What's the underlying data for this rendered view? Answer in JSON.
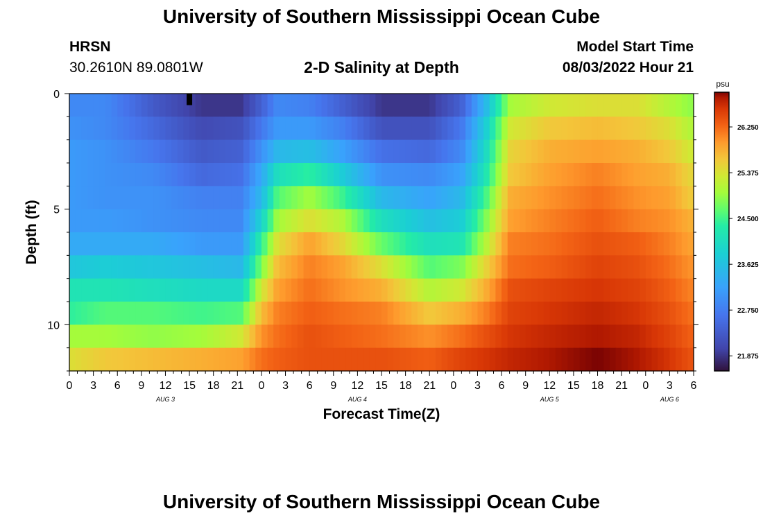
{
  "header": {
    "title": "University of Southern Mississippi Ocean Cube",
    "station": "HRSN",
    "coords": "30.2610N  89.0801W",
    "subtitle": "2-D Salinity at Depth",
    "start_label": "Model Start Time",
    "start_value": "08/03/2022 Hour 21"
  },
  "footer": {
    "title": "University of Southern Mississippi Ocean Cube"
  },
  "chart_data": {
    "type": "heatmap",
    "title": "2-D Salinity at Depth",
    "xlabel": "Forecast Time(Z)",
    "ylabel": "Depth (ft)",
    "x_range_hours": [
      0,
      78
    ],
    "x_ticks": [
      {
        "h": 0,
        "label": "0"
      },
      {
        "h": 3,
        "label": "3"
      },
      {
        "h": 6,
        "label": "6"
      },
      {
        "h": 9,
        "label": "9"
      },
      {
        "h": 12,
        "label": "12"
      },
      {
        "h": 15,
        "label": "15"
      },
      {
        "h": 18,
        "label": "18"
      },
      {
        "h": 21,
        "label": "21"
      },
      {
        "h": 24,
        "label": "0"
      },
      {
        "h": 27,
        "label": "3"
      },
      {
        "h": 30,
        "label": "6"
      },
      {
        "h": 33,
        "label": "9"
      },
      {
        "h": 36,
        "label": "12"
      },
      {
        "h": 39,
        "label": "15"
      },
      {
        "h": 42,
        "label": "18"
      },
      {
        "h": 45,
        "label": "21"
      },
      {
        "h": 48,
        "label": "0"
      },
      {
        "h": 51,
        "label": "3"
      },
      {
        "h": 54,
        "label": "6"
      },
      {
        "h": 57,
        "label": "9"
      },
      {
        "h": 60,
        "label": "12"
      },
      {
        "h": 63,
        "label": "15"
      },
      {
        "h": 66,
        "label": "18"
      },
      {
        "h": 69,
        "label": "21"
      },
      {
        "h": 72,
        "label": "0"
      },
      {
        "h": 75,
        "label": "3"
      },
      {
        "h": 78,
        "label": "6"
      }
    ],
    "date_labels": [
      {
        "h": 12,
        "label": "AUG 3"
      },
      {
        "h": 36,
        "label": "AUG 4"
      },
      {
        "h": 60,
        "label": "AUG 5"
      },
      {
        "h": 75,
        "label": "AUG 6"
      }
    ],
    "y_range_ft": [
      0,
      12
    ],
    "y_ticks": [
      {
        "v": 0,
        "label": "0"
      },
      {
        "v": 5,
        "label": "5"
      },
      {
        "v": 10,
        "label": "10"
      }
    ],
    "depth_levels_ft": [
      0.5,
      1.5,
      2.5,
      3.5,
      4.5,
      5.5,
      6.5,
      7.5,
      8.5,
      9.5,
      10.5,
      11.5
    ],
    "colorbar": {
      "unit": "psu",
      "range": [
        21.6,
        26.9
      ],
      "ticks": [
        "21.875",
        "22.750",
        "23.625",
        "24.500",
        "25.375",
        "26.250"
      ]
    },
    "salinity_keyframes": [
      {
        "h": 0,
        "values": [
          22.9,
          23.0,
          23.1,
          23.1,
          23.1,
          23.1,
          23.3,
          23.7,
          24.2,
          24.4,
          25.0,
          25.4
        ]
      },
      {
        "h": 4.5,
        "values": [
          22.9,
          22.9,
          23.0,
          23.0,
          23.0,
          23.1,
          23.3,
          23.8,
          24.2,
          24.6,
          25.0,
          25.6
        ]
      },
      {
        "h": 10.5,
        "values": [
          22.3,
          22.5,
          22.7,
          22.9,
          23.0,
          23.0,
          23.3,
          23.7,
          24.1,
          24.6,
          24.9,
          25.7
        ]
      },
      {
        "h": 16.5,
        "values": [
          21.9,
          22.1,
          22.3,
          22.5,
          22.8,
          22.9,
          23.1,
          23.6,
          24.0,
          24.5,
          25.0,
          25.8
        ]
      },
      {
        "h": 21.5,
        "values": [
          21.9,
          22.2,
          22.4,
          22.6,
          22.8,
          22.9,
          23.1,
          23.5,
          24.0,
          24.6,
          25.3,
          25.9
        ]
      },
      {
        "h": 24,
        "values": [
          22.4,
          22.7,
          23.0,
          23.3,
          23.5,
          23.9,
          24.4,
          24.8,
          25.3,
          25.7,
          26.0,
          26.2
        ]
      },
      {
        "h": 26,
        "values": [
          22.9,
          23.1,
          23.5,
          24.1,
          24.6,
          25.0,
          25.4,
          25.7,
          25.9,
          26.1,
          26.2,
          26.3
        ]
      },
      {
        "h": 30,
        "values": [
          22.8,
          23.1,
          23.6,
          24.4,
          25.0,
          25.4,
          25.9,
          26.1,
          26.2,
          26.3,
          26.4,
          26.4
        ]
      },
      {
        "h": 34,
        "values": [
          22.4,
          22.8,
          23.2,
          23.8,
          24.5,
          25.1,
          25.5,
          25.9,
          26.0,
          26.2,
          26.3,
          26.4
        ]
      },
      {
        "h": 39,
        "values": [
          21.9,
          22.2,
          22.6,
          23.0,
          23.5,
          24.1,
          24.7,
          25.4,
          25.8,
          26.1,
          26.2,
          26.4
        ]
      },
      {
        "h": 45,
        "values": [
          21.9,
          22.2,
          22.5,
          22.9,
          23.2,
          23.6,
          24.1,
          24.6,
          25.1,
          25.6,
          26.0,
          26.3
        ]
      },
      {
        "h": 49,
        "values": [
          22.4,
          22.7,
          22.9,
          23.2,
          23.5,
          23.8,
          24.2,
          24.8,
          25.3,
          25.8,
          26.2,
          26.5
        ]
      },
      {
        "h": 52,
        "values": [
          23.5,
          23.8,
          24.0,
          24.2,
          24.5,
          24.8,
          25.1,
          25.5,
          25.8,
          26.1,
          26.4,
          26.6
        ]
      },
      {
        "h": 55,
        "values": [
          25.0,
          25.3,
          25.5,
          25.6,
          25.8,
          25.9,
          26.1,
          26.2,
          26.4,
          26.5,
          26.6,
          26.7
        ]
      },
      {
        "h": 60,
        "values": [
          25.3,
          25.6,
          25.8,
          25.9,
          26.0,
          26.1,
          26.2,
          26.3,
          26.5,
          26.6,
          26.7,
          26.8
        ]
      },
      {
        "h": 66,
        "values": [
          25.4,
          25.7,
          25.9,
          26.1,
          26.2,
          26.3,
          26.4,
          26.5,
          26.6,
          26.7,
          26.8,
          26.9
        ]
      },
      {
        "h": 71,
        "values": [
          25.4,
          25.6,
          25.8,
          25.9,
          26.0,
          26.1,
          26.3,
          26.4,
          26.5,
          26.6,
          26.7,
          26.8
        ]
      },
      {
        "h": 75,
        "values": [
          25.1,
          25.4,
          25.6,
          25.8,
          25.9,
          26.0,
          26.1,
          26.2,
          26.3,
          26.4,
          26.5,
          26.6
        ]
      },
      {
        "h": 77.5,
        "values": [
          24.9,
          25.1,
          25.3,
          25.5,
          25.6,
          25.8,
          25.9,
          26.0,
          26.1,
          26.2,
          26.3,
          26.4
        ]
      }
    ],
    "marker": {
      "h": 15,
      "depth_ft": 0.25
    }
  }
}
